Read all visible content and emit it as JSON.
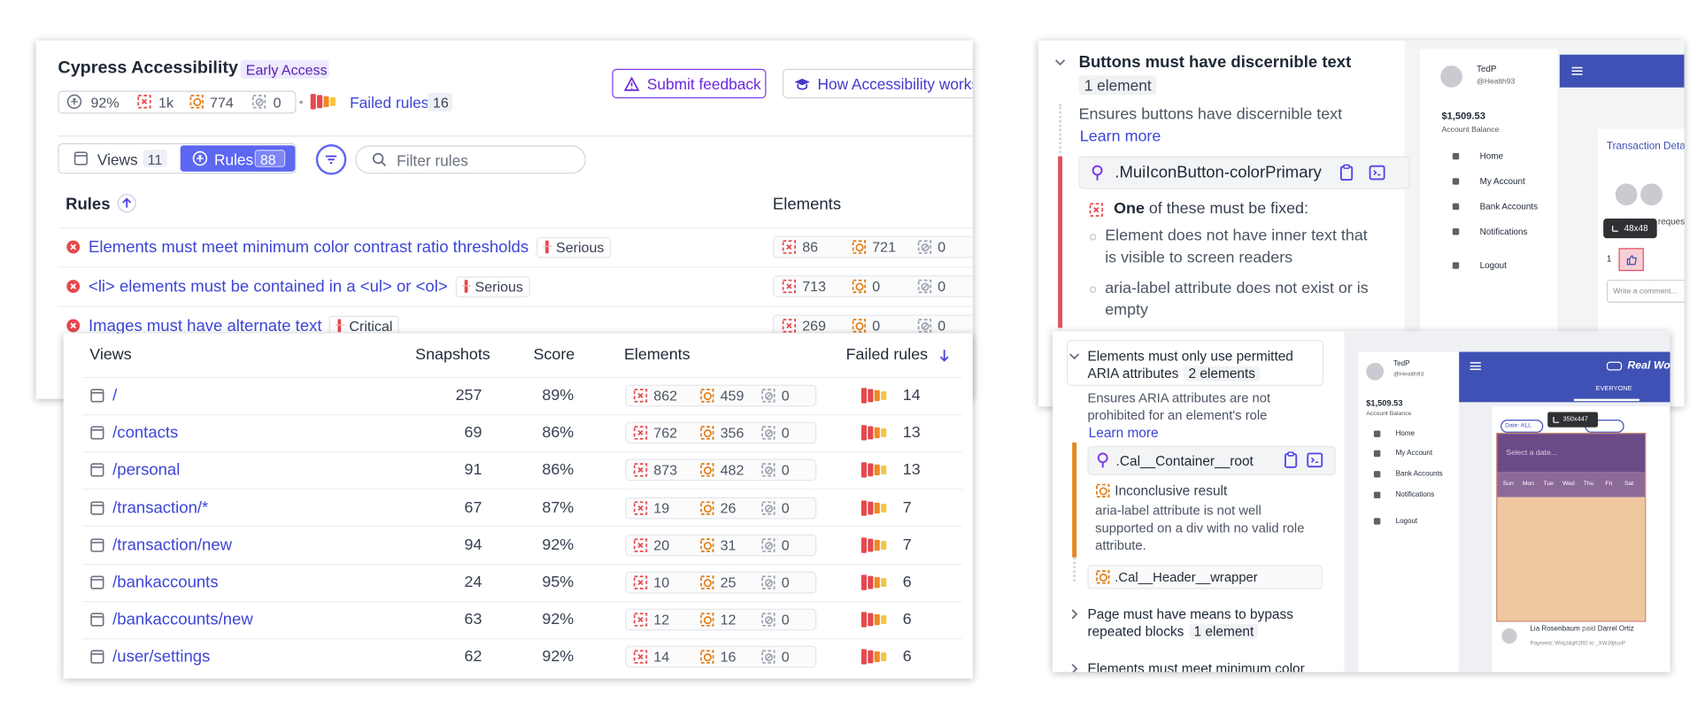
{
  "header": {
    "title": "Cypress Accessibility",
    "badge": "Early Access",
    "score": "92%",
    "violations": "1k",
    "incomplete": 774,
    "passes": 0,
    "failed_rules_label": "Failed rules",
    "failed_rules_count": 16,
    "feedback_button": "Submit feedback",
    "docs_button": "How Accessibility works"
  },
  "toolbar": {
    "views_tab": "Views",
    "views_count": 11,
    "rules_tab": "Rules",
    "rules_count": 88,
    "filter_placeholder": "Filter rules"
  },
  "rules_table": {
    "columns": [
      "Rules",
      "Elements"
    ],
    "rows": [
      {
        "name": "Elements must meet minimum color contrast ratio thresholds",
        "severity": "Serious",
        "counts": [
          86,
          721,
          0
        ]
      },
      {
        "name": "<li> elements must be contained in a <ul> or <ol>",
        "severity": "Serious",
        "counts": [
          713,
          0,
          0
        ]
      },
      {
        "name": "Images must have alternate text",
        "severity": "Critical",
        "counts": [
          269,
          0,
          0
        ]
      }
    ]
  },
  "views_table": {
    "columns": [
      "Views",
      "Snapshots",
      "Score",
      "Elements",
      "Failed rules"
    ],
    "rows": [
      {
        "view": "/",
        "snapshots": 257,
        "score": "89%",
        "counts": [
          862,
          459,
          0
        ],
        "failed_rules": 14
      },
      {
        "view": "/contacts",
        "snapshots": 69,
        "score": "86%",
        "counts": [
          762,
          356,
          0
        ],
        "failed_rules": 13
      },
      {
        "view": "/personal",
        "snapshots": 91,
        "score": "86%",
        "counts": [
          873,
          482,
          0
        ],
        "failed_rules": 13
      },
      {
        "view": "/transaction/*",
        "snapshots": 67,
        "score": "87%",
        "counts": [
          19,
          26,
          0
        ],
        "failed_rules": 7
      },
      {
        "view": "/transaction/new",
        "snapshots": 94,
        "score": "92%",
        "counts": [
          20,
          31,
          0
        ],
        "failed_rules": 7
      },
      {
        "view": "/bankaccounts",
        "snapshots": 24,
        "score": "95%",
        "counts": [
          10,
          25,
          0
        ],
        "failed_rules": 6
      },
      {
        "view": "/bankaccounts/new",
        "snapshots": 63,
        "score": "92%",
        "counts": [
          12,
          12,
          0
        ],
        "failed_rules": 6
      },
      {
        "view": "/user/settings",
        "snapshots": 62,
        "score": "92%",
        "counts": [
          14,
          16,
          0
        ],
        "failed_rules": 6
      }
    ]
  },
  "rule_detail": {
    "title": "Buttons must have discernible text",
    "badge": "1 element",
    "description": "Ensures buttons have discernible text",
    "link": "Learn more",
    "selector": ".MuiIconButton-colorPrimary",
    "fix_heading_strong": "One",
    "fix_heading": "of these must be fixed:",
    "checks": [
      "Element does not have inner text that is visible to screen readers",
      "aria-label attribute does not exist or is empty"
    ]
  },
  "app_preview_1": {
    "user": "TedP",
    "handle": "@Health93",
    "balance": "$1,509.53",
    "balance_label": "Account Balance",
    "nav": [
      "Home",
      "My Account",
      "Bank Accounts",
      "Notifications",
      "Logout"
    ],
    "panel_title": "Transaction Details",
    "tooltip": "48x48",
    "partial_text": "requested",
    "like_count": "1",
    "comment_placeholder": "Write a comment..."
  },
  "rule_detail_2": {
    "title": "Elements must only use permitted ARIA attributes",
    "badge": "2 elements",
    "description": "Ensures ARIA attributes are not prohibited for an element's role",
    "link": "Learn more",
    "selector": ".Cal__Container__root",
    "result": "Inconclusive result",
    "message": "aria-label attribute is not well supported on a div with no valid role attribute.",
    "next_selector": ".Cal__Header__wrapper"
  },
  "collapsed_rules": [
    {
      "title": "Page must have means to bypass repeated blocks",
      "badge": "1 element"
    },
    {
      "title": "Elements must meet minimum color contrast ratio thresholds"
    }
  ],
  "app_preview_2": {
    "user": "TedP",
    "handle": "@Health93",
    "balance": "$1,509.53",
    "balance_label": "Account Balance",
    "nav": [
      "Home",
      "My Account",
      "Bank Accounts",
      "Notifications",
      "Logout"
    ],
    "brand": "Real World App",
    "tab": "EVERYONE",
    "date_filter": "Date: ALL",
    "tooltip": "350x447",
    "date_placeholder": "Select a date...",
    "weekdays": [
      "Sun",
      "Mon",
      "Tue",
      "Wed",
      "Thu",
      "Fri",
      "Sat"
    ],
    "payer": "Lia Rosenbaum",
    "action": "paid",
    "payee": "Darrel Ortiz",
    "payment_note": "Payment: WHjJ4qR2R0 to _XWJ9jtusP"
  }
}
